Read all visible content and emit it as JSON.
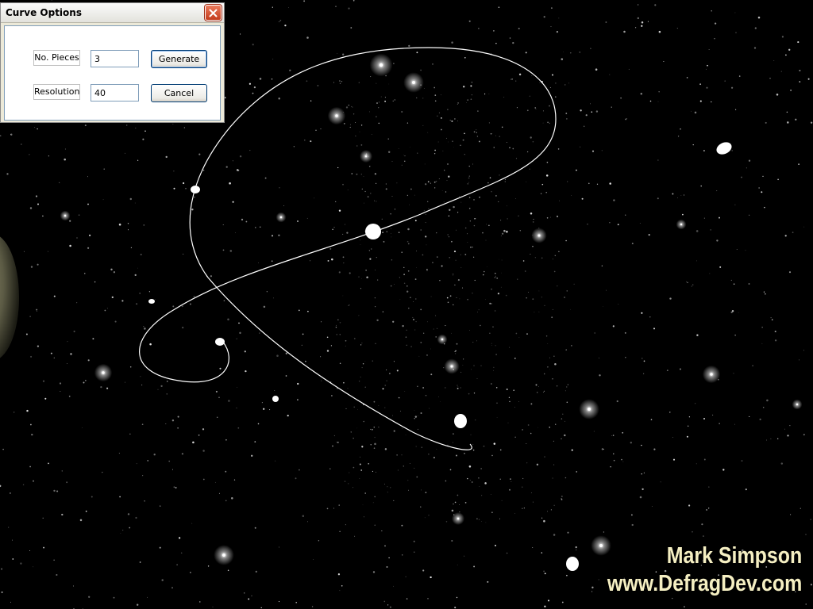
{
  "dialog": {
    "title": "Curve Options",
    "close_icon": "close-icon",
    "fields": {
      "pieces": {
        "label": "No. Pieces",
        "value": "3"
      },
      "resolution": {
        "label": "Resolution",
        "value": "40"
      }
    },
    "buttons": {
      "generate": "Generate",
      "cancel": "Cancel"
    }
  },
  "watermark": {
    "name": "Mark Simpson",
    "url": "www.DefragDev.com"
  },
  "colors": {
    "background": "#000000",
    "curve": "#ffffff",
    "watermark": "#f5efc2",
    "close_button": "#d04a28"
  }
}
